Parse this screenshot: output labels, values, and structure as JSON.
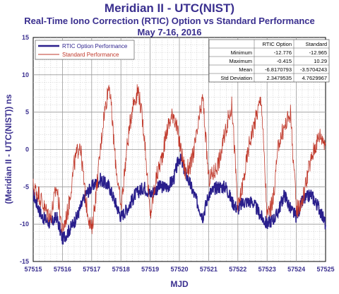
{
  "chart_data": {
    "type": "line",
    "title": "Meridian II - UTC(NIST)",
    "subtitle": "Real-Time Iono Correction (RTIC) Option vs Standard Performance",
    "date_range": "May 7-16, 2016",
    "xlabel": "MJD",
    "ylabel": "(Meridian II - UTC(NIST)) ns",
    "xlim": [
      57515,
      57525
    ],
    "ylim": [
      -15,
      15
    ],
    "x_ticks": [
      "57515",
      "57516",
      "57517",
      "57518",
      "57519",
      "57520",
      "57521",
      "57522",
      "57523",
      "57524",
      "57525"
    ],
    "y_ticks": [
      "15",
      "10",
      "5",
      "0",
      "-5",
      "-10",
      "-15"
    ],
    "grid": true,
    "legend_position": "top-left",
    "series": [
      {
        "name": "RTIC Option Performance",
        "color": "#2a1f8c",
        "x": [
          57515.0,
          57515.3,
          57515.6,
          57515.8,
          57516.0,
          57516.2,
          57516.5,
          57516.8,
          57517.0,
          57517.3,
          57517.6,
          57517.8,
          57518.0,
          57518.2,
          57518.5,
          57518.8,
          57519.0,
          57519.3,
          57519.6,
          57519.8,
          57520.0,
          57520.2,
          57520.5,
          57520.8,
          57521.0,
          57521.3,
          57521.6,
          57521.8,
          57522.0,
          57522.2,
          57522.5,
          57522.8,
          57523.0,
          57523.3,
          57523.6,
          57523.8,
          57524.0,
          57524.2,
          57524.5,
          57524.8,
          57525.0
        ],
        "y": [
          -6,
          -9,
          -10,
          -9,
          -12,
          -11,
          -9,
          -6,
          -5,
          -4,
          -5,
          -7,
          -9,
          -8,
          -6,
          -5,
          -6,
          -5,
          -5,
          -4,
          -1,
          -3,
          -6,
          -9,
          -6,
          -5,
          -5,
          -7,
          -8,
          -7,
          -7,
          -9,
          -10,
          -9,
          -6,
          -8,
          -9,
          -7,
          -6,
          -8,
          -10
        ],
        "noise_amplitude": 0.9
      },
      {
        "name": "Standard Performance",
        "color": "#c0392b",
        "x": [
          57515.0,
          57515.2,
          57515.4,
          57515.6,
          57515.8,
          57516.0,
          57516.2,
          57516.4,
          57516.6,
          57516.8,
          57517.0,
          57517.2,
          57517.4,
          57517.6,
          57517.8,
          57518.0,
          57518.2,
          57518.4,
          57518.6,
          57518.8,
          57519.0,
          57519.2,
          57519.4,
          57519.6,
          57519.8,
          57520.0,
          57520.2,
          57520.4,
          57520.6,
          57520.8,
          57521.0,
          57521.2,
          57521.4,
          57521.6,
          57521.8,
          57522.0,
          57522.2,
          57522.4,
          57522.6,
          57522.8,
          57523.0,
          57523.2,
          57523.4,
          57523.6,
          57523.8,
          57524.0,
          57524.2,
          57524.4,
          57524.6,
          57524.8,
          57525.0
        ],
        "y": [
          -5,
          -6,
          -8,
          -9,
          -5,
          -11,
          -8,
          -2,
          1,
          -7,
          -11,
          -4,
          4,
          9,
          -1,
          -8,
          0,
          6,
          8,
          2,
          -9,
          -4,
          -1,
          3,
          5,
          1,
          -3,
          -2,
          2,
          7,
          -4,
          -3,
          -1,
          3,
          6,
          -8,
          -4,
          1,
          4,
          7,
          -9,
          -7,
          1,
          3,
          5,
          -8,
          -7,
          -3,
          0,
          2,
          1
        ],
        "noise_amplitude": 1.3
      }
    ],
    "stats_table": {
      "headers": [
        "",
        "RTIC Option",
        "Standard"
      ],
      "rows": [
        [
          "Minimum",
          "-12.776",
          "-12.965"
        ],
        [
          "Maximum",
          "-0.415",
          "10.29"
        ],
        [
          "Mean",
          "-6.8170793",
          "-3.5704243"
        ],
        [
          "Std Deviation",
          "2.3479535",
          "4.7629967"
        ]
      ]
    }
  }
}
